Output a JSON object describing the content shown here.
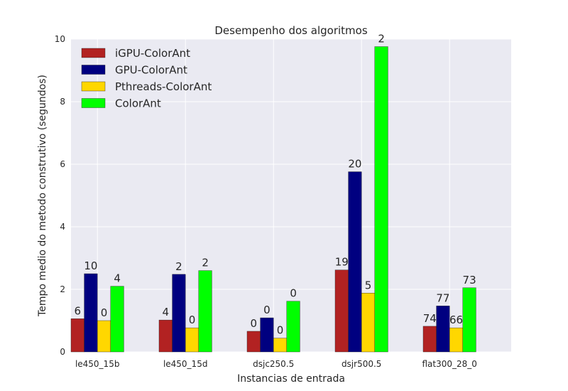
{
  "chart_data": {
    "type": "bar",
    "title": "Desempenho dos algoritmos",
    "xlabel": "Instancias de entrada",
    "ylabel": "Tempo medio do metodo construtivo (segundos)",
    "ylim": [
      0,
      10
    ],
    "yticks": [
      "0",
      "2",
      "4",
      "6",
      "8",
      "10"
    ],
    "grid": true,
    "legend_position": "top-left",
    "categories": [
      "le450_15b",
      "le450_15d",
      "dsjc250.5",
      "dsjr500.5",
      "flat300_28_0"
    ],
    "series": [
      {
        "name": "iGPU-ColorAnt",
        "color": "#b22222",
        "values": [
          1.06,
          1.02,
          0.66,
          2.62,
          0.82
        ],
        "labels": [
          "6",
          "4",
          "0",
          "19",
          "74"
        ]
      },
      {
        "name": "GPU-ColorAnt",
        "color": "#000080",
        "values": [
          2.5,
          2.48,
          1.09,
          5.76,
          1.47
        ],
        "labels": [
          "10",
          "2",
          "0",
          "20",
          "77"
        ]
      },
      {
        "name": "Pthreads-ColorAnt",
        "color": "#ffd700",
        "values": [
          1.0,
          0.77,
          0.44,
          1.88,
          0.77
        ],
        "labels": [
          "0",
          "0",
          "0",
          "5",
          "66"
        ]
      },
      {
        "name": "ColorAnt",
        "color": "#00ff00",
        "values": [
          2.1,
          2.6,
          1.62,
          9.76,
          2.05
        ],
        "labels": [
          "4",
          "2",
          "0",
          "2",
          "73"
        ]
      }
    ]
  }
}
